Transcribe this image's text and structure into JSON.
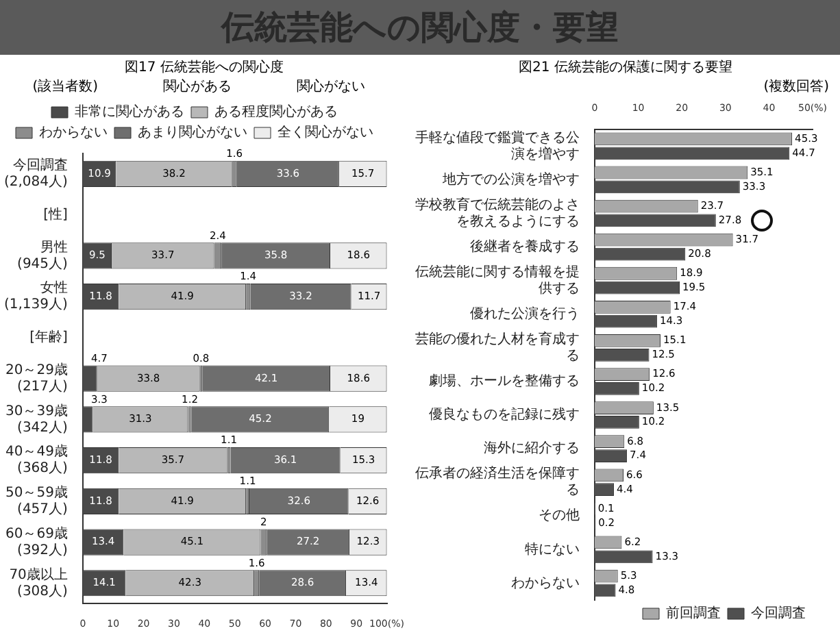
{
  "chart_data": [
    {
      "type": "other",
      "title": "伝統芸能への関心度・要望"
    },
    {
      "type": "bar",
      "title": "図17 伝統芸能への関心度",
      "orientation": "horizontal",
      "stacked": true,
      "legend": "top",
      "data_labels": true,
      "annotations": [
        "(該当者数)",
        "関心がある",
        "関心がない"
      ],
      "categories": [
        "今回調査 (2,084人)",
        "[性]",
        "男性 (945人)",
        "女性 (1,139人)",
        "[年齢]",
        "20～29歳 (217人)",
        "30～39歳 (342人)",
        "40～49歳 (368人)",
        "50～59歳 (457人)",
        "60～69歳 (392人)",
        "70歳以上 (308人)"
      ],
      "series": [
        {
          "name": "非常に関心がある",
          "color": "#4a4a4a",
          "values": [
            10.9,
            null,
            9.5,
            11.8,
            null,
            4.7,
            3.3,
            11.8,
            11.8,
            13.4,
            14.1
          ]
        },
        {
          "name": "ある程度関心がある",
          "color": "#b8b8b8",
          "values": [
            38.2,
            null,
            33.7,
            41.9,
            null,
            33.8,
            31.3,
            35.7,
            41.9,
            45.1,
            42.3
          ]
        },
        {
          "name": "わからない",
          "color": "#8c8c8c",
          "values": [
            1.6,
            null,
            2.4,
            1.4,
            null,
            0.8,
            1.2,
            1.1,
            1.1,
            2,
            1.6
          ]
        },
        {
          "name": "あまり関心がない",
          "color": "#6e6e6e",
          "values": [
            33.6,
            null,
            35.8,
            33.2,
            null,
            42.1,
            45.2,
            36.1,
            32.6,
            27.2,
            28.6
          ]
        },
        {
          "name": "全く関心がない",
          "color": "#ececec",
          "values": [
            15.7,
            null,
            18.6,
            11.7,
            null,
            18.6,
            19,
            15.3,
            12.6,
            12.3,
            13.4
          ]
        }
      ],
      "xlim": [
        0,
        100
      ],
      "xticks": [
        0,
        10,
        20,
        30,
        40,
        50,
        60,
        70,
        80,
        90,
        {
          "value": 100,
          "label": "100(%)"
        }
      ]
    },
    {
      "type": "bar",
      "title": "図21 伝統芸能の保護に関する要望",
      "orientation": "horizontal",
      "legend": "bottom right",
      "data_labels": true,
      "annotations": [
        "(複数回答)"
      ],
      "categories": [
        "手軽な値段で鑑賞できる公演を増やす",
        "地方での公演を増やす",
        "学校教育で伝統芸能のよさを教えるようにする",
        "後継者を養成する",
        "伝統芸能に関する情報を提供する",
        "優れた公演を行う",
        "芸能の優れた人材を育成する",
        "劇場、ホールを整備する",
        "優良なものを記録に残す",
        "海外に紹介する",
        "伝承者の経済生活を保障する",
        "その他",
        "特にない",
        "わからない"
      ],
      "series": [
        {
          "name": "前回調査",
          "color": "#a8a8a8",
          "values": [
            45.3,
            35.1,
            23.7,
            31.7,
            18.9,
            17.4,
            15.1,
            12.6,
            13.5,
            6.8,
            6.6,
            0.1,
            6.2,
            5.3
          ]
        },
        {
          "name": "今回調査",
          "color": "#505050",
          "values": [
            44.7,
            33.3,
            27.8,
            20.8,
            19.5,
            14.3,
            12.5,
            10.2,
            10.2,
            7.4,
            4.4,
            0.2,
            13.3,
            4.8
          ]
        }
      ],
      "xlim": [
        0,
        50
      ],
      "xticks": [
        0,
        10,
        20,
        30,
        40,
        {
          "value": 50,
          "label": "50(%)"
        }
      ]
    }
  ]
}
